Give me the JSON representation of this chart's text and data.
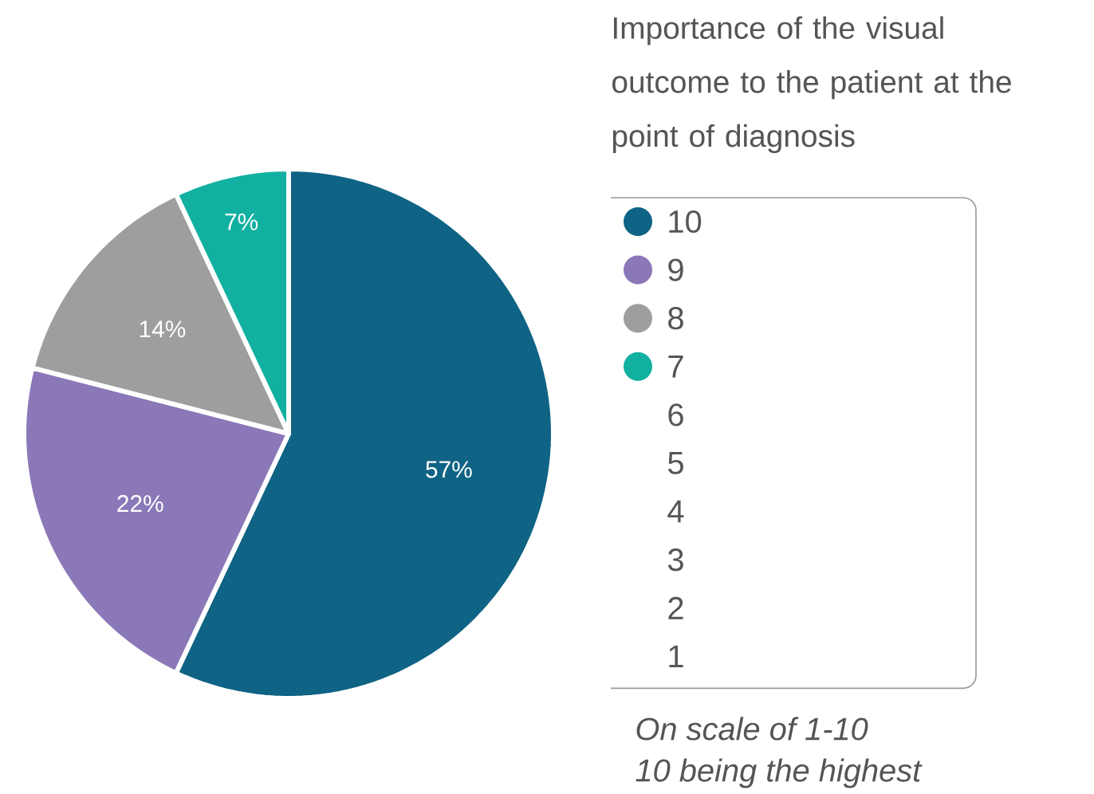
{
  "chart_data": {
    "type": "pie",
    "title": "Importance of the visual outcome to the patient at the point of diagnosis",
    "categories": [
      "10",
      "9",
      "8",
      "7",
      "6",
      "5",
      "4",
      "3",
      "2",
      "1"
    ],
    "values": [
      57,
      22,
      14,
      7,
      0,
      0,
      0,
      0,
      0,
      0
    ],
    "colors": [
      "#0f6384",
      "#8a78b8",
      "#9e9e9e",
      "#12b0a0",
      "#0f6384",
      "#0f6384",
      "#0f6384",
      "#0f6384",
      "#0f6384",
      "#0f6384"
    ],
    "value_labels": [
      "57%",
      "22%",
      "14%",
      "7%",
      null,
      null,
      null,
      null,
      null,
      null
    ],
    "legend": "right",
    "annotations": [
      "*On scale of 1-10*",
      "*10 being the highest*"
    ]
  }
}
